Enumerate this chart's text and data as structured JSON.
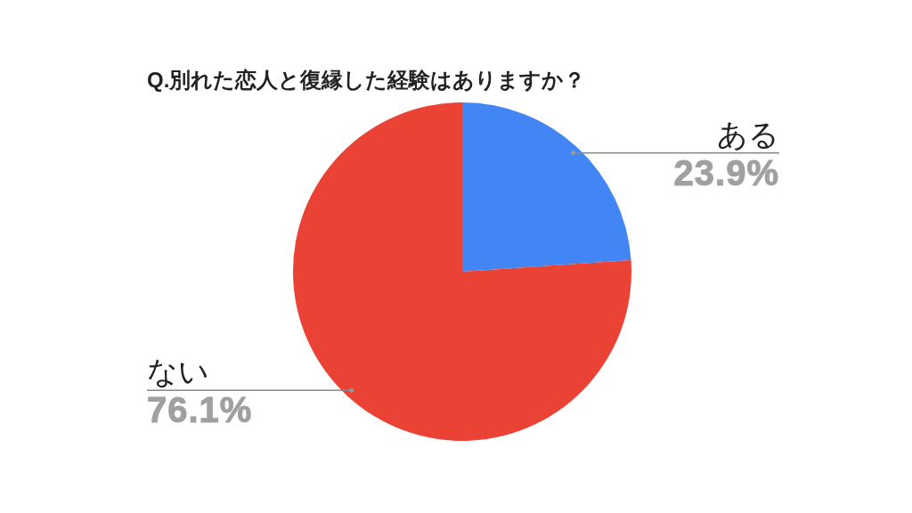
{
  "chart_data": {
    "type": "pie",
    "title": "Q.別れた恋人と復縁した経験はありますか？",
    "categories": [
      "ある",
      "ない"
    ],
    "values": [
      23.9,
      76.1
    ],
    "colors": [
      "#4285f4",
      "#ea4335"
    ],
    "value_labels": [
      "23.9%",
      "76.1%"
    ]
  }
}
